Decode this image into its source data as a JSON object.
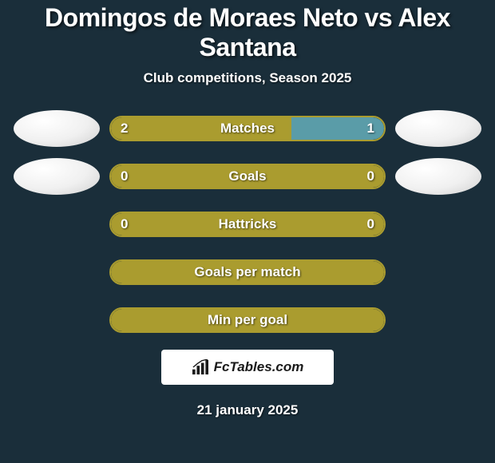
{
  "header": {
    "title": "Domingos de Moraes Neto vs Alex Santana",
    "subtitle": "Club competitions, Season 2025"
  },
  "colors": {
    "background": "#1a2e3a",
    "bar_olive": "#aa9c2f",
    "bar_teal": "#5a9ca8",
    "text": "#ffffff"
  },
  "stats": [
    {
      "label": "Matches",
      "left_value": "2",
      "right_value": "1",
      "left_pct": 66,
      "right_pct": 34,
      "left_color": "#aa9c2f",
      "right_color": "#5a9ca8",
      "border_color": "#aa9c2f",
      "show_avatars": true,
      "show_values": true
    },
    {
      "label": "Goals",
      "left_value": "0",
      "right_value": "0",
      "left_pct": 100,
      "right_pct": 0,
      "left_color": "#aa9c2f",
      "right_color": "#5a9ca8",
      "border_color": "#aa9c2f",
      "show_avatars": true,
      "show_values": true
    },
    {
      "label": "Hattricks",
      "left_value": "0",
      "right_value": "0",
      "left_pct": 100,
      "right_pct": 0,
      "left_color": "#aa9c2f",
      "right_color": "#5a9ca8",
      "border_color": "#aa9c2f",
      "show_avatars": false,
      "show_values": true
    },
    {
      "label": "Goals per match",
      "left_value": "",
      "right_value": "",
      "left_pct": 100,
      "right_pct": 0,
      "left_color": "#aa9c2f",
      "right_color": "#5a9ca8",
      "border_color": "#aa9c2f",
      "show_avatars": false,
      "show_values": false
    },
    {
      "label": "Min per goal",
      "left_value": "",
      "right_value": "",
      "left_pct": 100,
      "right_pct": 0,
      "left_color": "#aa9c2f",
      "right_color": "#5a9ca8",
      "border_color": "#aa9c2f",
      "show_avatars": false,
      "show_values": false
    }
  ],
  "logo": {
    "text": "FcTables.com"
  },
  "footer": {
    "date": "21 january 2025"
  }
}
